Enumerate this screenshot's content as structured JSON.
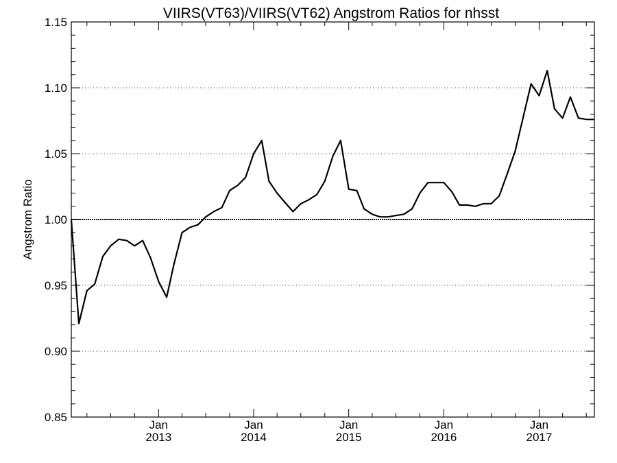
{
  "chart_data": {
    "type": "line",
    "title": "VIIRS(VT63)/VIIRS(VT62)  Angstrom Ratios for nhsst",
    "xlabel": "",
    "ylabel": "Angstrom Ratio",
    "ylim": [
      0.85,
      1.15
    ],
    "yticks": [
      0.85,
      0.9,
      0.95,
      1.0,
      1.05,
      1.1,
      1.15
    ],
    "ytick_labels": [
      "0.85",
      "0.90",
      "0.95",
      "1.00",
      "1.05",
      "1.10",
      "1.15"
    ],
    "xlim": [
      "2012-02-01",
      "2017-08-01"
    ],
    "xticks": [
      {
        "date": "2013-01-01",
        "month": "Jan",
        "year": "2013"
      },
      {
        "date": "2014-01-01",
        "month": "Jan",
        "year": "2014"
      },
      {
        "date": "2015-01-01",
        "month": "Jan",
        "year": "2015"
      },
      {
        "date": "2016-01-01",
        "month": "Jan",
        "year": "2016"
      },
      {
        "date": "2017-01-01",
        "month": "Jan",
        "year": "2017"
      }
    ],
    "reference_line": 1.0,
    "series": [
      {
        "x": [
          "2012-02",
          "2012-03",
          "2012-04",
          "2012-05",
          "2012-06",
          "2012-07",
          "2012-08",
          "2012-09",
          "2012-10",
          "2012-11",
          "2012-12",
          "2013-01",
          "2013-02",
          "2013-03",
          "2013-04",
          "2013-05",
          "2013-06",
          "2013-07",
          "2013-08",
          "2013-09",
          "2013-10",
          "2013-11",
          "2013-12",
          "2014-01",
          "2014-02",
          "2014-03",
          "2014-04",
          "2014-05",
          "2014-06",
          "2014-07",
          "2014-08",
          "2014-09",
          "2014-10",
          "2014-11",
          "2014-12",
          "2015-01",
          "2015-02",
          "2015-03",
          "2015-04",
          "2015-05",
          "2015-06",
          "2015-07",
          "2015-08",
          "2015-09",
          "2015-10",
          "2015-11",
          "2015-12",
          "2016-01",
          "2016-02",
          "2016-03",
          "2016-04",
          "2016-05",
          "2016-06",
          "2016-07",
          "2016-08",
          "2016-09",
          "2016-10",
          "2016-11",
          "2016-12",
          "2017-01",
          "2017-02",
          "2017-03",
          "2017-04",
          "2017-05",
          "2017-06",
          "2017-07",
          "2017-08"
        ],
        "values": [
          1.0,
          0.921,
          0.946,
          0.951,
          0.972,
          0.98,
          0.985,
          0.984,
          0.98,
          0.984,
          0.971,
          0.953,
          0.941,
          0.966,
          0.99,
          0.994,
          0.996,
          1.002,
          1.006,
          1.009,
          1.022,
          1.026,
          1.032,
          1.05,
          1.06,
          1.029,
          1.02,
          1.013,
          1.006,
          1.012,
          1.015,
          1.019,
          1.029,
          1.048,
          1.06,
          1.023,
          1.022,
          1.008,
          1.004,
          1.002,
          1.002,
          1.003,
          1.004,
          1.008,
          1.02,
          1.028,
          1.028,
          1.028,
          1.021,
          1.011,
          1.011,
          1.01,
          1.012,
          1.012,
          1.018,
          1.035,
          1.052,
          1.078,
          1.103,
          1.094,
          1.113,
          1.084,
          1.077,
          1.093,
          1.077,
          1.076,
          1.076
        ]
      }
    ]
  }
}
